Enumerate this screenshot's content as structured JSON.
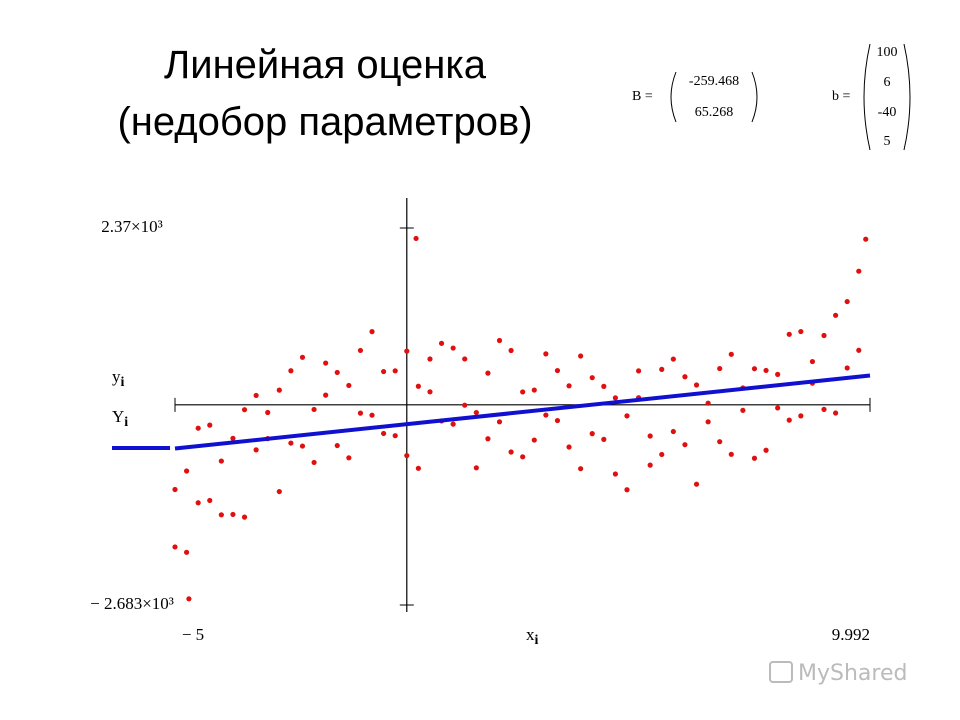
{
  "title": [
    "Линейная оценка",
    "(недобор параметров)"
  ],
  "matrices": [
    {
      "name": "B =",
      "values": [
        -259.468,
        65.268
      ]
    },
    {
      "name": "b =",
      "values": [
        100,
        6,
        -40,
        5
      ]
    }
  ],
  "watermark": "MyShared",
  "chart_data": {
    "type": "scatter",
    "x_label": "x",
    "index_label": "i",
    "xlim": [
      -5,
      9.992
    ],
    "ylim": [
      -2683,
      2370
    ],
    "xticks": [
      {
        "value": -5,
        "label": "− 5"
      },
      {
        "value": 9.992,
        "label": "9.992"
      }
    ],
    "yticks": [
      {
        "value": 2370,
        "label": "2.37×10³"
      },
      {
        "value": -2683,
        "label": "− 2.683×10³"
      }
    ],
    "series": [
      {
        "name": "y",
        "color": "#e01010",
        "x": [
          -5,
          -4.75,
          -4.5,
          -4.25,
          -4,
          -3.75,
          -3.5,
          -3.25,
          -3,
          -2.75,
          -2.5,
          -2.25,
          -2,
          -1.75,
          -1.5,
          -1.25,
          -1,
          -0.75,
          -0.5,
          -0.25,
          0,
          0.25,
          0.5,
          0.75,
          1,
          1.25,
          1.5,
          1.75,
          2,
          2.25,
          2.5,
          2.75,
          3,
          3.25,
          3.5,
          3.75,
          4,
          4.25,
          4.5,
          4.75,
          5,
          5.25,
          5.5,
          5.75,
          6,
          6.25,
          6.5,
          6.75,
          7,
          7.25,
          7.5,
          7.75,
          8,
          8.25,
          8.5,
          8.75,
          9,
          9.25,
          9.5,
          9.75,
          -5,
          -4.75,
          -4.5,
          -4.25,
          -4,
          -3.75,
          -3.5,
          -3.25,
          -3,
          -2.75,
          -2.5,
          -2.25,
          -2,
          -1.75,
          -1.5,
          -1.25,
          -1,
          -0.75,
          -0.5,
          -0.25,
          0,
          0.25,
          0.5,
          0.75,
          1,
          1.25,
          1.5,
          1.75,
          2,
          2.25,
          2.5,
          2.75,
          3,
          3.25,
          3.5,
          3.75,
          4,
          4.25,
          4.5,
          4.75,
          5,
          5.25,
          5.5,
          5.75,
          6,
          6.25,
          6.5,
          6.75,
          7,
          7.25,
          7.5,
          7.75,
          8,
          8.25,
          8.5,
          8.75,
          9,
          9.25,
          9.5,
          9.75,
          0.2,
          -4.7,
          9.9
        ],
        "values": [
          -1135,
          -1977,
          -313,
          -1282,
          -754,
          -1469,
          -65,
          -604,
          -103,
          -1163,
          457,
          -553,
          -62,
          560,
          -546,
          260,
          -111,
          981,
          -384,
          456,
          -680,
          249,
          614,
          -216,
          761,
          -5,
          -844,
          425,
          -228,
          728,
          -697,
          198,
          -137,
          459,
          -565,
          654,
          -386,
          247,
          -927,
          -148,
          95,
          -808,
          475,
          -358,
          376,
          -1064,
          22,
          -494,
          677,
          -74,
          484,
          -609,
          408,
          -205,
          982,
          290,
          929,
          -110,
          1384,
          731,
          -1905,
          -887,
          -1313,
          -272,
          -1474,
          -449,
          -1505,
          126,
          -453,
          197,
          -513,
          637,
          -772,
          130,
          434,
          -710,
          729,
          -139,
          446,
          -414,
          720,
          -851,
          174,
          824,
          -259,
          615,
          -104,
          -455,
          862,
          -632,
          173,
          -472,
          683,
          -211,
          255,
          -856,
          364,
          -463,
          93,
          -1138,
          455,
          -418,
          -665,
          613,
          -534,
          266,
          -228,
          486,
          -663,
          226,
          -716,
          461,
          -42,
          945,
          -148,
          580,
          -61,
          1200,
          494,
          1791,
          2230,
          -2600,
          2220
        ]
      },
      {
        "name": "Y",
        "color": "#1010d0",
        "line": true,
        "x": [
          -5,
          9.992
        ],
        "values": [
          -585.8,
          392.7
        ]
      }
    ]
  }
}
